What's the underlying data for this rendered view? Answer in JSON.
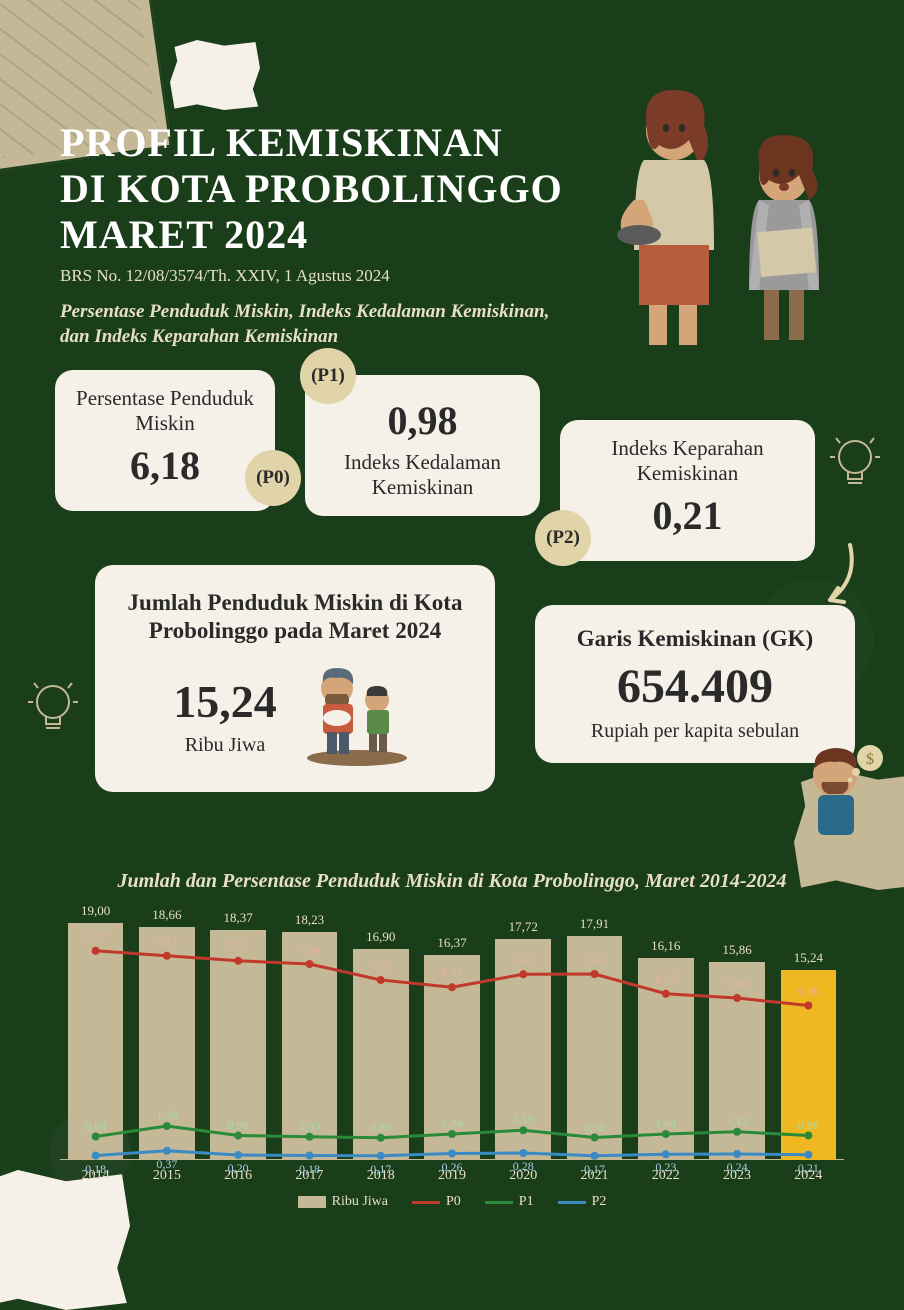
{
  "background_color": "#1a3d1a",
  "card_bg": "#f5f0e8",
  "badge_bg": "#e0d4a8",
  "text_dark": "#2a2a2a",
  "text_light": "#e8dfc8",
  "header": {
    "title_line1": "PROFIL KEMISKINAN",
    "title_line2": "DI KOTA PROBOLINGGO",
    "title_line3": "MARET 2024",
    "subtitle": "BRS No. 12/08/3574/Th. XXIV, 1 Agustus 2024",
    "desc": "Persentase Penduduk Miskin, Indeks Kedalaman Kemiskinan, dan Indeks Keparahan Kemiskinan"
  },
  "cards": {
    "p0": {
      "badge": "(P0)",
      "label": "Persentase Penduduk Miskin",
      "value": "6,18"
    },
    "p1": {
      "badge": "(P1)",
      "label": "Indeks Kedalaman Kemiskinan",
      "value": "0,98"
    },
    "p2": {
      "badge": "(P2)",
      "label": "Indeks Keparahan Kemiskinan",
      "value": "0,21"
    },
    "jumlah": {
      "label": "Jumlah Penduduk Miskin di Kota Probolinggo pada Maret 2024",
      "value": "15,24",
      "unit": "Ribu Jiwa"
    },
    "gk": {
      "label": "Garis Kemiskinan (GK)",
      "value": "654.409",
      "unit": "Rupiah per kapita sebulan"
    }
  },
  "chart": {
    "title": "Jumlah dan Persentase Penduduk Miskin di Kota Probolinggo, Maret 2014-2024",
    "type": "bar+line",
    "years": [
      "2014",
      "2015",
      "2016",
      "2017",
      "2018",
      "2019",
      "2020",
      "2021",
      "2022",
      "2023",
      "2024"
    ],
    "bar_series": {
      "name": "Ribu Jiwa",
      "color": "#c4b896",
      "highlight_color": "#f0b820",
      "highlight_index": 10,
      "values": [
        19.0,
        18.66,
        18.37,
        18.23,
        16.9,
        16.37,
        17.72,
        17.91,
        16.16,
        15.86,
        15.24
      ],
      "labels": [
        "19,00",
        "18,66",
        "18,37",
        "18,23",
        "16,90",
        "16,37",
        "17,72",
        "17,91",
        "16,16",
        "15,86",
        "15,24"
      ]
    },
    "line_series": [
      {
        "name": "P0",
        "color": "#c0392b",
        "values": [
          8.37,
          8.17,
          7.97,
          7.84,
          7.2,
          6.91,
          7.43,
          7.44,
          6.65,
          6.48,
          6.18
        ],
        "labels": [
          "8,37",
          "8,17",
          "7,97",
          "7,84",
          "7,2",
          "6,91",
          "7,43",
          "7,44",
          "6,65",
          "6,48",
          "6,18"
        ]
      },
      {
        "name": "P1",
        "color": "#2a8a3a",
        "values": [
          0.94,
          1.36,
          0.98,
          0.93,
          0.89,
          1.04,
          1.19,
          0.9,
          1.04,
          1.13,
          0.98
        ],
        "labels": [
          "0,94",
          "1,36",
          "0,98",
          "0,93",
          "0,89",
          "1,04",
          "1,19",
          "0,90",
          "1,04",
          "1,13",
          "0,98"
        ]
      },
      {
        "name": "P2",
        "color": "#3a8ac4",
        "values": [
          0.18,
          0.37,
          0.2,
          0.18,
          0.17,
          0.26,
          0.28,
          0.17,
          0.23,
          0.24,
          0.21
        ],
        "labels": [
          "0,18",
          "0,37",
          "0,20",
          "0,18",
          "0,17",
          "0,26",
          "0,28",
          "0,17",
          "0,23",
          "0,24",
          "0,21"
        ]
      }
    ],
    "bar_ymax": 20,
    "line_ymax": 10,
    "bar_width": 0.78,
    "legend": [
      "Ribu Jiwa",
      "P0",
      "P1",
      "P2"
    ]
  }
}
